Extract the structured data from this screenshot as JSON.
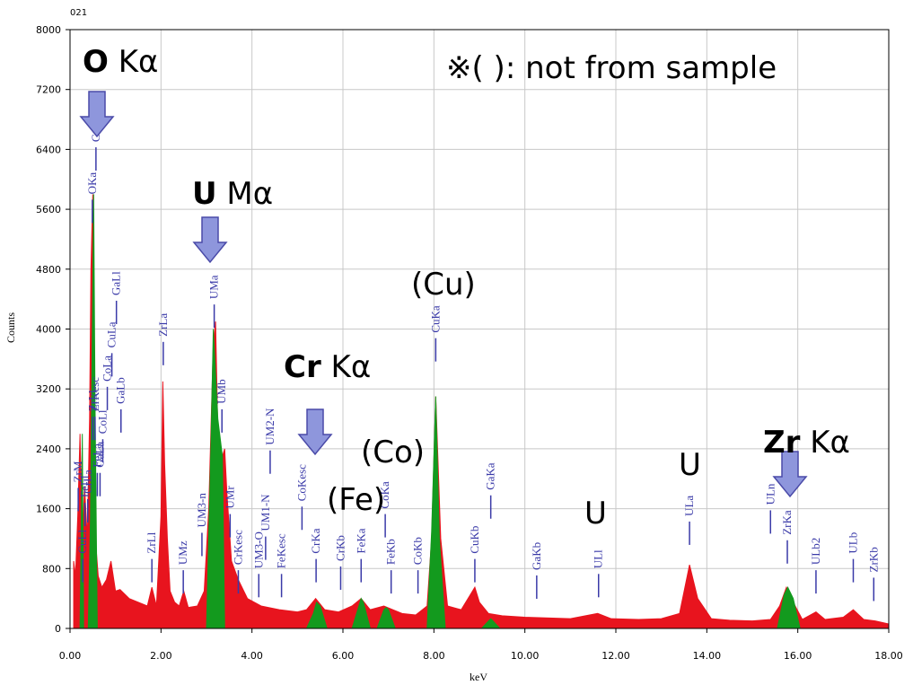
{
  "chart_data": {
    "type": "area",
    "top_left_label": "021",
    "xlabel": "keV",
    "ylabel": "Counts",
    "xlim": [
      0,
      18
    ],
    "ylim": [
      0,
      8000
    ],
    "x_ticks": [
      "0.00",
      "2.00",
      "4.00",
      "6.00",
      "8.00",
      "10.00",
      "12.00",
      "14.00",
      "16.00",
      "18.00"
    ],
    "y_ticks": [
      "0",
      "800",
      "1600",
      "2400",
      "3200",
      "4000",
      "4800",
      "5600",
      "6400",
      "7200",
      "8000"
    ],
    "grid": true,
    "colors": {
      "spectrum": "#e8141e",
      "highlight": "#139a1e",
      "markers": "#3a3aa8",
      "arrow": "#8e96dc"
    },
    "spectrum": {
      "x": [
        0.08,
        0.12,
        0.17,
        0.22,
        0.27,
        0.32,
        0.38,
        0.43,
        0.46,
        0.5,
        0.53,
        0.57,
        0.62,
        0.7,
        0.8,
        0.9,
        1.0,
        1.1,
        1.3,
        1.5,
        1.7,
        1.8,
        1.9,
        2.0,
        2.04,
        2.08,
        2.14,
        2.2,
        2.3,
        2.4,
        2.5,
        2.6,
        2.8,
        2.95,
        3.05,
        3.15,
        3.2,
        3.25,
        3.3,
        3.35,
        3.4,
        3.45,
        3.55,
        3.7,
        3.9,
        4.2,
        4.6,
        5.0,
        5.2,
        5.4,
        5.6,
        5.9,
        6.2,
        6.4,
        6.6,
        6.9,
        7.1,
        7.3,
        7.6,
        7.85,
        7.95,
        8.04,
        8.15,
        8.3,
        8.6,
        8.8,
        8.9,
        9.0,
        9.2,
        9.5,
        10.0,
        11.0,
        11.6,
        11.9,
        12.5,
        13.0,
        13.4,
        13.62,
        13.8,
        14.1,
        14.5,
        15.0,
        15.4,
        15.6,
        15.75,
        15.9,
        16.1,
        16.4,
        16.6,
        17.0,
        17.22,
        17.45,
        17.7,
        18.0
      ],
      "y": [
        900,
        700,
        1500,
        2600,
        1100,
        1900,
        1200,
        2800,
        4800,
        5800,
        2800,
        1100,
        700,
        550,
        650,
        900,
        500,
        520,
        400,
        350,
        300,
        550,
        300,
        1500,
        3300,
        2200,
        1200,
        500,
        350,
        300,
        500,
        280,
        300,
        500,
        1600,
        3800,
        4100,
        2600,
        1800,
        2300,
        2400,
        1800,
        900,
        650,
        400,
        300,
        250,
        220,
        250,
        400,
        250,
        220,
        300,
        400,
        250,
        300,
        250,
        200,
        180,
        300,
        1200,
        3100,
        1200,
        300,
        250,
        450,
        550,
        350,
        200,
        170,
        150,
        130,
        200,
        130,
        120,
        130,
        200,
        850,
        400,
        130,
        110,
        100,
        120,
        300,
        550,
        350,
        120,
        220,
        120,
        150,
        250,
        120,
        100,
        60
      ]
    },
    "highlighted_regions": [
      {
        "x": [
          0.4,
          0.45,
          0.49,
          0.52,
          0.55,
          0.6
        ],
        "y": [
          0,
          1500,
          4000,
          5800,
          3000,
          0
        ]
      },
      {
        "x": [
          0.22,
          0.27,
          0.3
        ],
        "y": [
          0,
          2600,
          0
        ]
      },
      {
        "x": [
          3.0,
          3.1,
          3.15,
          3.25,
          3.35,
          3.4
        ],
        "y": [
          0,
          2500,
          4000,
          2800,
          2300,
          0
        ]
      },
      {
        "x": [
          5.2,
          5.35,
          5.42,
          5.5,
          5.65
        ],
        "y": [
          0,
          200,
          350,
          300,
          0
        ]
      },
      {
        "x": [
          6.2,
          6.35,
          6.4,
          6.45,
          6.6
        ],
        "y": [
          0,
          300,
          400,
          350,
          0
        ]
      },
      {
        "x": [
          6.75,
          6.9,
          6.95,
          7.0,
          7.15
        ],
        "y": [
          0,
          250,
          280,
          250,
          0
        ]
      },
      {
        "x": [
          7.85,
          7.95,
          8.04,
          8.12,
          8.25
        ],
        "y": [
          0,
          1300,
          3100,
          1200,
          0
        ]
      },
      {
        "x": [
          9.05,
          9.2,
          9.25,
          9.3,
          9.45
        ],
        "y": [
          0,
          100,
          130,
          100,
          0
        ]
      },
      {
        "x": [
          15.55,
          15.7,
          15.78,
          15.9,
          16.05
        ],
        "y": [
          0,
          450,
          550,
          400,
          0
        ]
      }
    ],
    "markers": [
      {
        "x": 0.18,
        "y_label": 1950,
        "label": "ZrM"
      },
      {
        "x": 0.28,
        "y_label": 1000,
        "label": "CuLl"
      },
      {
        "x": 0.33,
        "y_label": 1750,
        "label": "FeLl"
      },
      {
        "x": 0.39,
        "y_label": 1800,
        "label": "CrLa"
      },
      {
        "x": 0.5,
        "y_label": 2900,
        "label": "ZrLl"
      },
      {
        "x": 0.55,
        "y_label": 2900,
        "label": "ZrKesc"
      },
      {
        "x": 0.6,
        "y_label": 2150,
        "label": "FeLa"
      },
      {
        "x": 0.66,
        "y_label": 2150,
        "label": "GaLa"
      },
      {
        "x": 0.72,
        "y_label": 2600,
        "label": "CoLl"
      },
      {
        "x": 0.82,
        "y_label": 3300,
        "label": "CoLa"
      },
      {
        "x": 0.92,
        "y_label": 3750,
        "label": "CuLa"
      },
      {
        "x": 1.02,
        "y_label": 4450,
        "label": "GaLl"
      },
      {
        "x": 1.12,
        "y_label": 3000,
        "label": "GaLb"
      },
      {
        "x": 0.49,
        "y_label": 5800,
        "label": "OKa"
      },
      {
        "x": 0.57,
        "y_label": 6500,
        "label": "CrLl"
      },
      {
        "x": 1.8,
        "y_label": 1000,
        "label": "ZrLl"
      },
      {
        "x": 2.05,
        "y_label": 3900,
        "label": "ZrLa"
      },
      {
        "x": 2.49,
        "y_label": 850,
        "label": "UMz"
      },
      {
        "x": 2.9,
        "y_label": 1350,
        "label": "UM3-n"
      },
      {
        "x": 3.17,
        "y_label": 4400,
        "label": "UMa"
      },
      {
        "x": 3.34,
        "y_label": 3000,
        "label": "UMb"
      },
      {
        "x": 3.52,
        "y_label": 1600,
        "label": "UMr"
      },
      {
        "x": 3.7,
        "y_label": 850,
        "label": "CrKesc"
      },
      {
        "x": 4.15,
        "y_label": 800,
        "label": "UM3-O"
      },
      {
        "x": 4.3,
        "y_label": 1300,
        "label": "UM1-N"
      },
      {
        "x": 4.4,
        "y_label": 2450,
        "label": "UM2-N"
      },
      {
        "x": 4.65,
        "y_label": 800,
        "label": "FeKesc"
      },
      {
        "x": 5.1,
        "y_label": 1700,
        "label": "CoKesc"
      },
      {
        "x": 5.41,
        "y_label": 1000,
        "label": "CrKa"
      },
      {
        "x": 5.95,
        "y_label": 900,
        "label": "CrKb"
      },
      {
        "x": 6.4,
        "y_label": 1000,
        "label": "FeKa"
      },
      {
        "x": 6.93,
        "y_label": 1600,
        "label": "CoKa"
      },
      {
        "x": 7.06,
        "y_label": 850,
        "label": "FeKb"
      },
      {
        "x": 7.65,
        "y_label": 850,
        "label": "CoKb"
      },
      {
        "x": 8.04,
        "y_label": 3950,
        "label": "CuKa"
      },
      {
        "x": 8.9,
        "y_label": 1000,
        "label": "CuKb"
      },
      {
        "x": 9.25,
        "y_label": 1850,
        "label": "GaKa"
      },
      {
        "x": 10.26,
        "y_label": 780,
        "label": "GaKb"
      },
      {
        "x": 11.62,
        "y_label": 800,
        "label": "ULl"
      },
      {
        "x": 13.62,
        "y_label": 1500,
        "label": "ULa"
      },
      {
        "x": 15.4,
        "y_label": 1650,
        "label": "ULn"
      },
      {
        "x": 15.77,
        "y_label": 1250,
        "label": "ZrKa"
      },
      {
        "x": 16.4,
        "y_label": 850,
        "label": "ULb2"
      },
      {
        "x": 17.22,
        "y_label": 1000,
        "label": "ULb"
      },
      {
        "x": 17.67,
        "y_label": 750,
        "label": "ZrKb"
      }
    ],
    "annotations": [
      {
        "id": "o-ka",
        "bold": "O",
        "text": " Kα",
        "arrow": true
      },
      {
        "id": "u-ma",
        "bold": "U",
        "text": " Mα",
        "arrow": true
      },
      {
        "id": "cr-ka",
        "bold": "Cr",
        "text": " Kα",
        "arrow": true
      },
      {
        "id": "zr-ka",
        "bold": "Zr",
        "text": " Kα",
        "arrow": true
      },
      {
        "id": "cu",
        "bold": "",
        "text": "(Cu)",
        "arrow": false
      },
      {
        "id": "co",
        "bold": "",
        "text": "(Co)",
        "arrow": false
      },
      {
        "id": "fe",
        "bold": "",
        "text": "(Fe)",
        "arrow": false
      },
      {
        "id": "u-mid",
        "bold": "",
        "text": "U",
        "arrow": false
      },
      {
        "id": "u-right",
        "bold": "",
        "text": "U",
        "arrow": false
      }
    ],
    "note": "※( ): not from sample"
  }
}
